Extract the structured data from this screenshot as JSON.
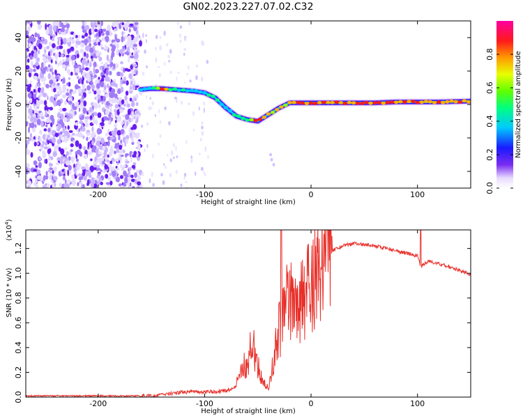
{
  "title": "GN02.2023.227.07.02.C32",
  "colors": {
    "signal": "#e8302a",
    "scatter": "#7a2cf0",
    "axis": "#000000"
  },
  "chart_data": [
    {
      "type": "heatmap",
      "title": "GN02.2023.227.07.02.C32",
      "xlabel": "Height of straight line (km)",
      "ylabel": "Frequency (Hz)",
      "xlim": [
        -268,
        150
      ],
      "ylim": [
        -50,
        50
      ],
      "xticks": [
        -200,
        -100,
        0,
        100
      ],
      "xtick_labels": [
        "-200",
        "-100",
        "0",
        "100"
      ],
      "yticks": [
        -40,
        -20,
        0,
        20,
        40
      ],
      "ytick_labels": [
        "-40",
        "-20",
        "0",
        "20",
        "40"
      ],
      "colorbar": {
        "label": "Normalized spectral amplitude",
        "range": [
          0,
          1
        ],
        "ticks": [
          0.0,
          0.2,
          0.4,
          0.6,
          0.8
        ],
        "tick_labels": [
          "0.0",
          "0.2",
          "0.4",
          "0.6",
          "0.8"
        ]
      },
      "ridge": {
        "x": [
          -160,
          -150,
          -140,
          -130,
          -120,
          -110,
          -100,
          -90,
          -80,
          -70,
          -60,
          -50,
          -40,
          -30,
          -20,
          -10,
          0,
          20,
          40,
          60,
          80,
          100,
          120,
          150
        ],
        "freq": [
          9,
          9.5,
          9.5,
          9,
          8.5,
          8,
          7,
          4,
          -2,
          -7,
          -9,
          -10,
          -6,
          -2,
          1,
          1,
          1,
          1,
          1,
          1,
          1.5,
          1.5,
          1.5,
          2
        ],
        "amplitude": [
          0.55,
          0.6,
          0.95,
          0.7,
          0.6,
          0.55,
          0.55,
          0.6,
          0.6,
          0.65,
          0.7,
          0.95,
          0.85,
          0.85,
          0.9,
          0.95,
          0.95,
          0.95,
          0.95,
          0.95,
          0.95,
          0.9,
          0.9,
          0.9
        ]
      },
      "noise_region_x": [
        -268,
        -160
      ]
    },
    {
      "type": "line",
      "xlabel": "Height of straight line (km)",
      "ylabel": "SNR (10 * v/v)",
      "scale_label_prefix": "(x10",
      "scale_label_exp": "4",
      "scale_label_suffix": ")",
      "xlim": [
        -268,
        150
      ],
      "ylim": [
        0,
        1.35
      ],
      "xticks": [
        -200,
        -100,
        0,
        100
      ],
      "xtick_labels": [
        "-200",
        "-100",
        "0",
        "100"
      ],
      "yticks": [
        0.0,
        0.2,
        0.4,
        0.6,
        0.8,
        1.0,
        1.2
      ],
      "ytick_labels": [
        "0.0",
        "0.2",
        "0.4",
        "0.6",
        "0.8",
        "1.0",
        "1.2"
      ],
      "series": [
        {
          "name": "SNR",
          "color": "#e8302a",
          "x": [
            -268,
            -200,
            -150,
            -130,
            -120,
            -100,
            -80,
            -70,
            -60,
            -55,
            -50,
            -45,
            -40,
            -35,
            -30,
            -25,
            -20,
            -15,
            -10,
            -5,
            0,
            10,
            20,
            30,
            40,
            50,
            60,
            80,
            100,
            103,
            110,
            120,
            130,
            150
          ],
          "y": [
            0.01,
            0.01,
            0.01,
            0.03,
            0.04,
            0.04,
            0.05,
            0.08,
            0.25,
            0.35,
            0.2,
            0.1,
            0.05,
            0.3,
            0.55,
            0.7,
            0.8,
            0.75,
            0.78,
            0.85,
            0.9,
            1.08,
            1.18,
            1.22,
            1.24,
            1.23,
            1.22,
            1.18,
            1.14,
            1.05,
            1.1,
            1.08,
            1.05,
            0.99
          ]
        }
      ]
    }
  ]
}
